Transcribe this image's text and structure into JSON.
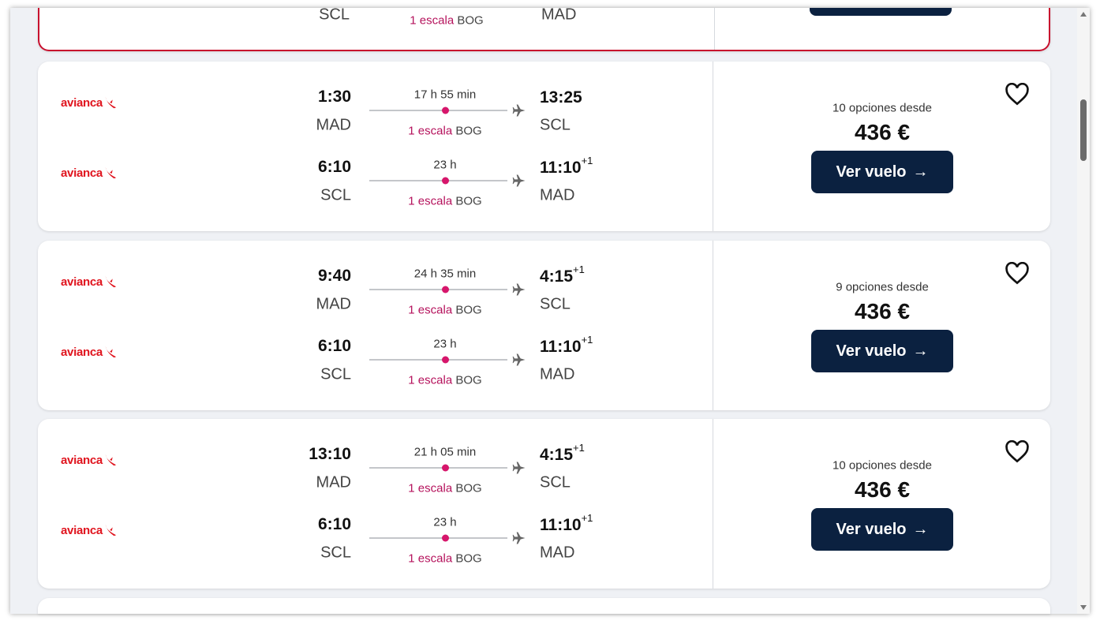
{
  "partial_card": {
    "dep_airport": "SCL",
    "stop_label": "1 escala",
    "stop_airport": "BOG",
    "arr_airport": "MAD"
  },
  "colors": {
    "accent": "#c8102e",
    "button": "#0b2140",
    "stop": "#d6166b"
  },
  "icons": {
    "airline": "avianca-logo",
    "plane": "plane-icon",
    "favorite": "heart-icon",
    "arrow": "arrow-right-icon"
  },
  "cards": [
    {
      "options": "10 opciones desde",
      "price": "436 €",
      "button": "Ver vuelo",
      "legs": [
        {
          "airline": "avianca",
          "dep_time": "1:30",
          "dep_airport": "MAD",
          "duration": "17 h 55 min",
          "stop_label": "1 escala",
          "stop_airport": "BOG",
          "arr_time": "13:25",
          "arr_offset": "",
          "arr_airport": "SCL"
        },
        {
          "airline": "avianca",
          "dep_time": "6:10",
          "dep_airport": "SCL",
          "duration": "23 h",
          "stop_label": "1 escala",
          "stop_airport": "BOG",
          "arr_time": "11:10",
          "arr_offset": "+1",
          "arr_airport": "MAD"
        }
      ]
    },
    {
      "options": "9 opciones desde",
      "price": "436 €",
      "button": "Ver vuelo",
      "legs": [
        {
          "airline": "avianca",
          "dep_time": "9:40",
          "dep_airport": "MAD",
          "duration": "24 h 35 min",
          "stop_label": "1 escala",
          "stop_airport": "BOG",
          "arr_time": "4:15",
          "arr_offset": "+1",
          "arr_airport": "SCL"
        },
        {
          "airline": "avianca",
          "dep_time": "6:10",
          "dep_airport": "SCL",
          "duration": "23 h",
          "stop_label": "1 escala",
          "stop_airport": "BOG",
          "arr_time": "11:10",
          "arr_offset": "+1",
          "arr_airport": "MAD"
        }
      ]
    },
    {
      "options": "10 opciones desde",
      "price": "436 €",
      "button": "Ver vuelo",
      "legs": [
        {
          "airline": "avianca",
          "dep_time": "13:10",
          "dep_airport": "MAD",
          "duration": "21 h 05 min",
          "stop_label": "1 escala",
          "stop_airport": "BOG",
          "arr_time": "4:15",
          "arr_offset": "+1",
          "arr_airport": "SCL"
        },
        {
          "airline": "avianca",
          "dep_time": "6:10",
          "dep_airport": "SCL",
          "duration": "23 h",
          "stop_label": "1 escala",
          "stop_airport": "BOG",
          "arr_time": "11:10",
          "arr_offset": "+1",
          "arr_airport": "MAD"
        }
      ]
    }
  ]
}
